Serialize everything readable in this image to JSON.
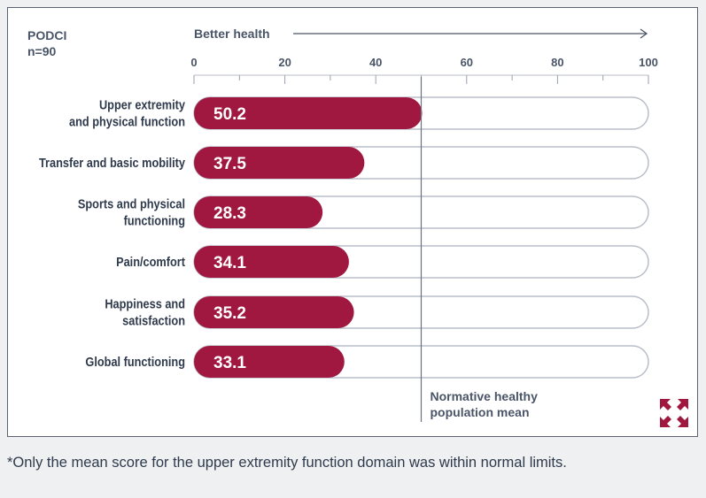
{
  "panel": {
    "instrument": "PODCI",
    "sample": "n=90"
  },
  "chart_data": {
    "type": "bar",
    "orientation": "horizontal",
    "header_label": "Better health",
    "categories": [
      [
        "Upper extremity",
        "and physical function"
      ],
      [
        "Transfer and basic mobility"
      ],
      [
        "Sports and physical",
        "functioning"
      ],
      [
        "Pain/comfort"
      ],
      [
        "Happiness and",
        "satisfaction"
      ],
      [
        "Global functioning"
      ]
    ],
    "values": [
      50.2,
      37.5,
      28.3,
      34.1,
      35.2,
      33.1
    ],
    "value_labels": [
      "50.2",
      "37.5",
      "28.3",
      "34.1",
      "35.2",
      "33.1"
    ],
    "xlim": [
      0,
      100
    ],
    "xticks": [
      0,
      20,
      40,
      60,
      80,
      100
    ],
    "reference_line": {
      "value": 50,
      "label": [
        "Normative healthy",
        "population mean"
      ]
    },
    "colors": {
      "bar": "#a0173f",
      "track_border": "#b8bec8",
      "text": "#2f3a4c",
      "muted": "#4a5568"
    }
  },
  "icons": {
    "expand": "expand-arrows-icon"
  },
  "footnote": "*Only the mean score for the upper extremity function domain was within normal limits."
}
